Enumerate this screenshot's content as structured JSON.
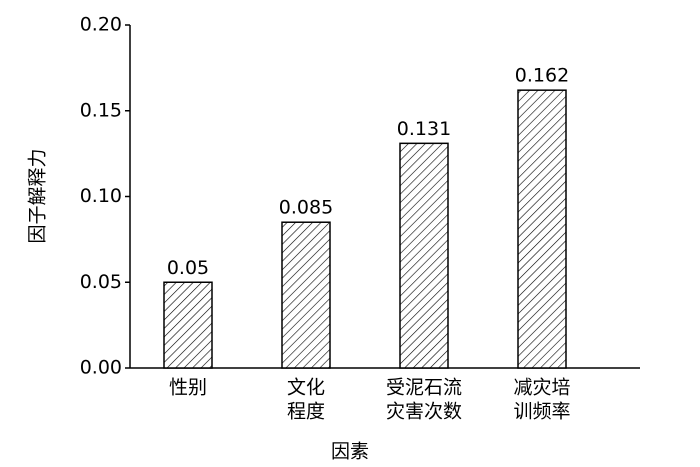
{
  "chart_data": {
    "type": "bar",
    "x_label": "因素",
    "y_label": "因子解释力",
    "categories": [
      [
        "性别"
      ],
      [
        "文化",
        "程度"
      ],
      [
        "受泥石流",
        "灾害次数"
      ],
      [
        "减灾培",
        "训频率"
      ]
    ],
    "values": [
      0.05,
      0.085,
      0.131,
      0.162
    ],
    "color": "#000000",
    "hatch": true,
    "ylim": [
      0,
      0.2
    ],
    "yticks": [
      {
        "value": 0,
        "label": "0.00"
      },
      {
        "value": 0.05,
        "label": "0.05"
      },
      {
        "value": 0.1,
        "label": "0.10"
      },
      {
        "value": 0.15,
        "label": "0.15"
      },
      {
        "value": 0.2,
        "label": "0.20"
      }
    ]
  }
}
